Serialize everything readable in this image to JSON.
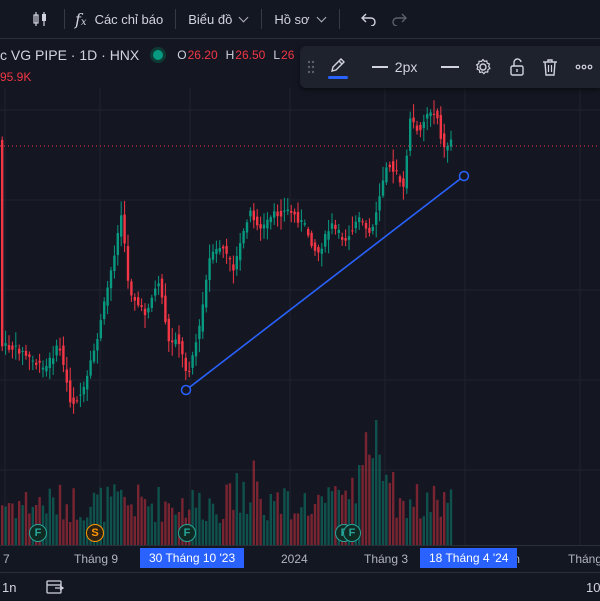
{
  "toolbar": {
    "indicators_label": "Các chỉ báo",
    "chart_menu_label": "Biểu đồ",
    "profile_menu_label": "Hồ sơ"
  },
  "legend": {
    "title": "c VG PIPE · 1D · HNX",
    "open_key": "O",
    "open_val": "26.20",
    "high_key": "H",
    "high_val": "26.50",
    "low_key": "L",
    "low_val": "26"
  },
  "volume_value": "95.9K",
  "drawing_toolbar": {
    "line_width_label": "2px"
  },
  "xaxis": {
    "labels": [
      "7",
      "Tháng 9",
      "2024",
      "Tháng 3",
      "m",
      "Tháng"
    ],
    "highlight_start": "30 Tháng 10 '23",
    "highlight_end": "18 Tháng 4 '24"
  },
  "event_badges": [
    "F",
    "S",
    "F",
    "F",
    "F"
  ],
  "bottombar": {
    "interval_label": "1n",
    "right_value": "10"
  },
  "colors": {
    "up": "#089981",
    "down": "#f23645",
    "trendline": "#2962ff",
    "accent": "#2962ff"
  }
}
